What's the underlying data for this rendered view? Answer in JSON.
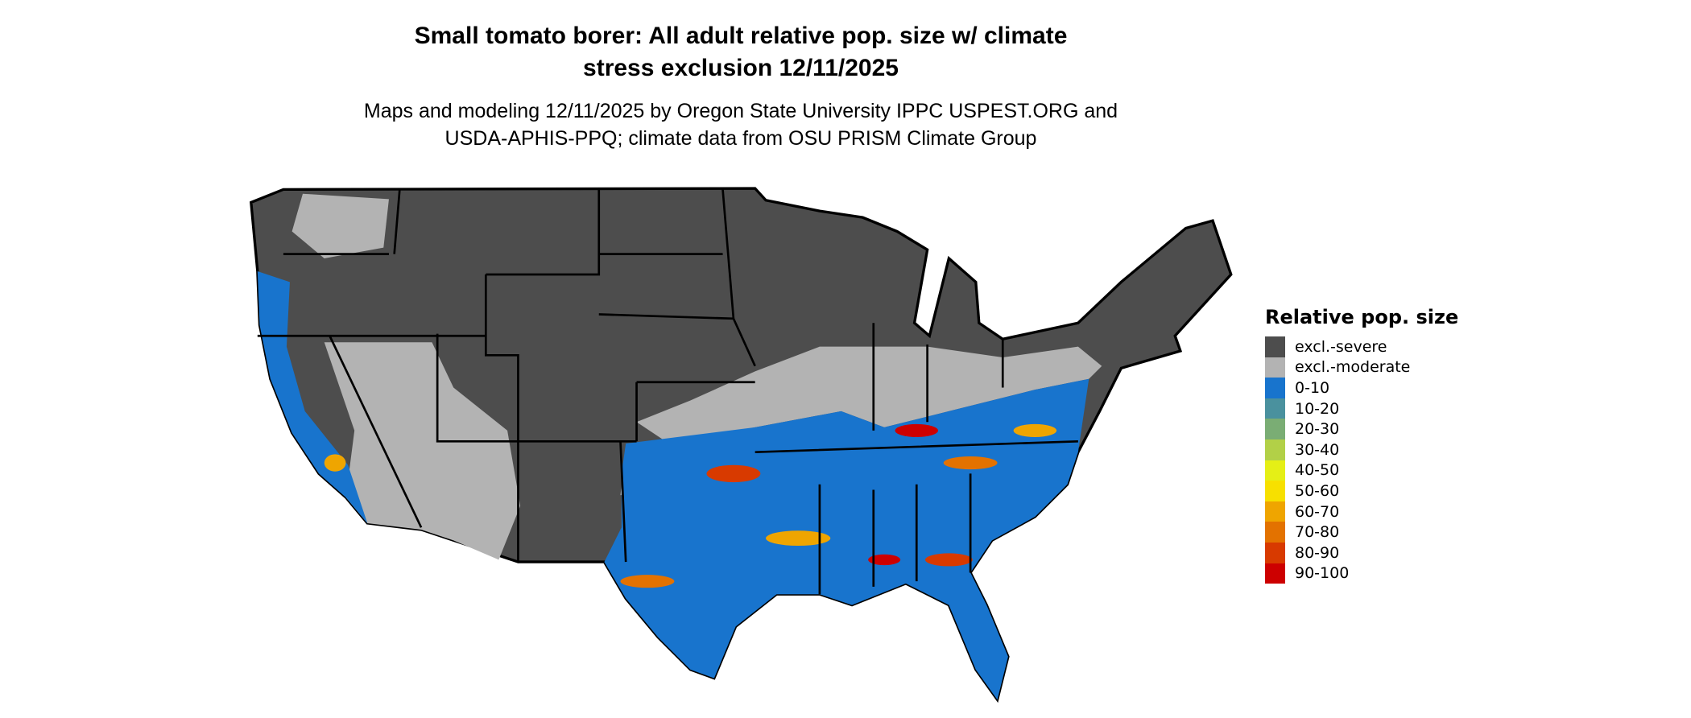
{
  "title": {
    "line1": "Small tomato borer: All adult relative pop. size w/ climate",
    "line2": "stress exclusion 12/11/2025"
  },
  "subtitle": {
    "line1": "Maps and modeling 12/11/2025 by Oregon State University IPPC USPEST.ORG and",
    "line2": "USDA-APHIS-PPQ; climate data from OSU PRISM Climate Group"
  },
  "map": {
    "region": "Contiguous United States",
    "colors": {
      "state_border": "#000000",
      "background": "#ffffff"
    }
  },
  "legend": {
    "title": "Relative pop. size",
    "items": [
      {
        "label": "excl.-severe",
        "color": "#4d4d4d"
      },
      {
        "label": "excl.-moderate",
        "color": "#b3b3b3"
      },
      {
        "label": "0-10",
        "color": "#1874cd"
      },
      {
        "label": "10-20",
        "color": "#4a919e"
      },
      {
        "label": "20-30",
        "color": "#7aad74"
      },
      {
        "label": "30-40",
        "color": "#b2d047"
      },
      {
        "label": "40-50",
        "color": "#e5ef16"
      },
      {
        "label": "50-60",
        "color": "#f7e000"
      },
      {
        "label": "60-70",
        "color": "#efa500"
      },
      {
        "label": "70-80",
        "color": "#e37200"
      },
      {
        "label": "80-90",
        "color": "#d83a00"
      },
      {
        "label": "90-100",
        "color": "#cd0000"
      }
    ]
  }
}
